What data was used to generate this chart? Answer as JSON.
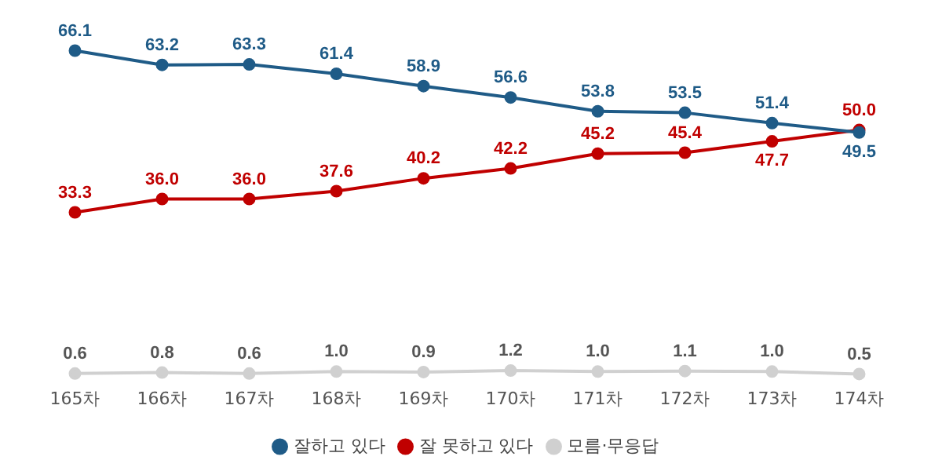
{
  "chart_data": {
    "type": "line",
    "categories": [
      "165차",
      "166차",
      "167차",
      "168차",
      "169차",
      "170차",
      "171차",
      "172차",
      "173차",
      "174차"
    ],
    "series": [
      {
        "name": "잘하고 있다",
        "color": "#1f5b87",
        "values": [
          66.1,
          63.2,
          63.3,
          61.4,
          58.9,
          56.6,
          53.8,
          53.5,
          51.4,
          49.5
        ],
        "value_labels": [
          "66.1",
          "63.2",
          "63.3",
          "61.4",
          "58.9",
          "56.6",
          "53.8",
          "53.5",
          "51.4",
          "49.5"
        ]
      },
      {
        "name": "잘 못하고 있다",
        "color": "#c00000",
        "values": [
          33.3,
          36.0,
          36.0,
          37.6,
          40.2,
          42.2,
          45.2,
          45.4,
          47.7,
          50.0
        ],
        "value_labels": [
          "33.3",
          "36.0",
          "36.0",
          "37.6",
          "40.2",
          "42.2",
          "45.2",
          "45.4",
          "47.7",
          "50.0"
        ]
      },
      {
        "name": "모름·무응답",
        "color": "#d0d0d0",
        "values": [
          0.6,
          0.8,
          0.6,
          1.0,
          0.9,
          1.2,
          1.0,
          1.1,
          1.0,
          0.5
        ],
        "value_labels": [
          "0.6",
          "0.8",
          "0.6",
          "1.0",
          "0.9",
          "1.2",
          "1.0",
          "1.1",
          "1.0",
          "0.5"
        ]
      }
    ],
    "tick_labels": "x",
    "grid": false,
    "legend": "bottom",
    "marker": "circle",
    "line_style": "solid"
  }
}
